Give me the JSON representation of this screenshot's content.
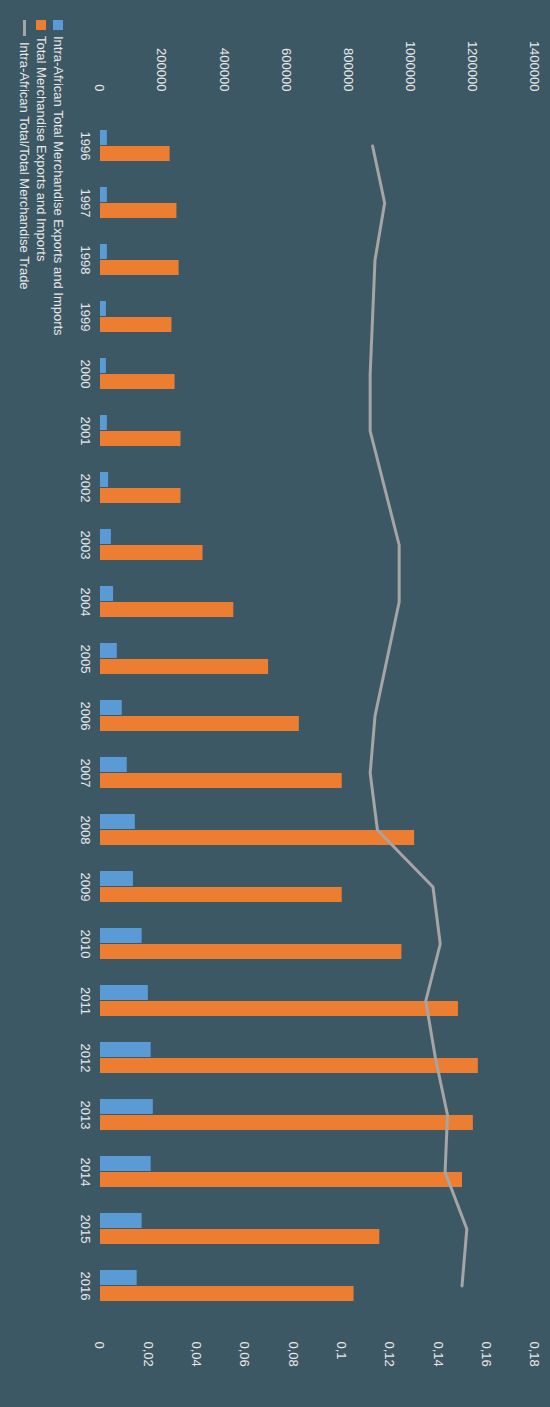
{
  "chart_data": {
    "type": "bar",
    "categories": [
      "1996",
      "1997",
      "1998",
      "1999",
      "2000",
      "2001",
      "2002",
      "2003",
      "2004",
      "2005",
      "2006",
      "2007",
      "2008",
      "2009",
      "2010",
      "2011",
      "2012",
      "2013",
      "2014",
      "2015",
      "2016"
    ],
    "series": [
      {
        "name": "Intra-African Total Merchandise Exports and Imports",
        "color": "#5b9bd5",
        "type": "bar",
        "values": [
          22000,
          22000,
          22000,
          19000,
          19000,
          22000,
          26000,
          35000,
          42000,
          54000,
          70000,
          86000,
          112000,
          106000,
          134000,
          154000,
          163000,
          170000,
          163000,
          134000,
          118000
        ]
      },
      {
        "name": "Total Merchandise Exports and Imports",
        "color": "#ed7d31",
        "type": "bar",
        "values": [
          224000,
          246000,
          253000,
          230000,
          240000,
          259000,
          259000,
          330000,
          429000,
          541000,
          640000,
          778000,
          1011000,
          778000,
          970000,
          1152000,
          1216000,
          1200000,
          1165000,
          899000,
          816000
        ]
      },
      {
        "name": "Intra-African Total/Total Merchandise Trade",
        "color": "#a5a5a5",
        "type": "line",
        "axis": "y2",
        "values": [
          0.113,
          0.118,
          0.114,
          0.113,
          0.112,
          0.112,
          0.118,
          0.124,
          0.124,
          0.119,
          0.114,
          0.112,
          0.115,
          0.138,
          0.141,
          0.135,
          0.139,
          0.144,
          0.143,
          0.152,
          0.15
        ]
      }
    ],
    "ylim": [
      0,
      1400000
    ],
    "yticks": [
      0,
      200000,
      400000,
      600000,
      800000,
      1000000,
      1200000,
      1400000
    ],
    "y2lim": [
      0,
      0.18
    ],
    "y2ticks": [
      0,
      {
        "value": 0.02,
        "label": "0,02"
      },
      {
        "value": 0.04,
        "label": "0,04"
      },
      {
        "value": 0.06,
        "label": "0,06"
      },
      {
        "value": 0.08,
        "label": "0,08"
      },
      {
        "value": 0.1,
        "label": "0,1"
      },
      {
        "value": 0.12,
        "label": "0,12"
      },
      {
        "value": 0.14,
        "label": "0,14"
      },
      {
        "value": 0.16,
        "label": "0,16"
      },
      {
        "value": 0.18,
        "label": "0,18"
      }
    ],
    "grid": false,
    "legend": "bottom"
  }
}
